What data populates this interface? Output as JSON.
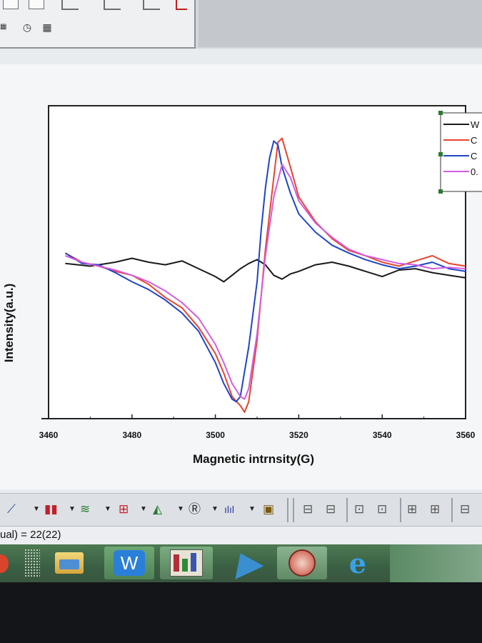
{
  "toolbar_top": {
    "icons": [
      "clock-icon",
      "grid-icon"
    ]
  },
  "chart_data": {
    "type": "line",
    "xlabel": "Magnetic intrnsity(G)",
    "ylabel": "Intensity(a.u.)",
    "xlim": [
      3460,
      3560
    ],
    "x_ticks": [
      "3460",
      "3480",
      "3500",
      "3520",
      "3540",
      "3560"
    ],
    "ylim": [
      -1.15,
      1.25
    ],
    "legend_position": "right, partially cut off",
    "legend_labels": [
      "W",
      "C",
      "C",
      "0."
    ],
    "series": [
      {
        "name": "W",
        "color": "#1a1a1a",
        "x": [
          3464,
          3470,
          3476,
          3480,
          3484,
          3488,
          3492,
          3496,
          3500,
          3502,
          3504,
          3506,
          3508,
          3510,
          3512,
          3514,
          3516,
          3518,
          3520,
          3524,
          3528,
          3532,
          3536,
          3540,
          3544,
          3548,
          3552,
          3556,
          3560
        ],
        "y": [
          0.04,
          0.02,
          0.05,
          0.08,
          0.05,
          0.03,
          0.06,
          0.0,
          -0.06,
          -0.1,
          -0.05,
          0.0,
          0.04,
          0.07,
          0.03,
          -0.05,
          -0.08,
          -0.04,
          -0.02,
          0.03,
          0.05,
          0.02,
          -0.02,
          -0.06,
          -0.01,
          0.0,
          -0.03,
          -0.05,
          -0.07
        ]
      },
      {
        "name": "C",
        "color": "#e8442e",
        "x": [
          3464,
          3468,
          3472,
          3476,
          3480,
          3484,
          3488,
          3492,
          3496,
          3500,
          3502,
          3504,
          3506,
          3507,
          3508,
          3510,
          3512,
          3514,
          3515,
          3516,
          3518,
          3520,
          3524,
          3528,
          3532,
          3536,
          3540,
          3544,
          3548,
          3552,
          3556,
          3560
        ],
        "y": [
          0.12,
          0.05,
          0.02,
          -0.02,
          -0.05,
          -0.12,
          -0.22,
          -0.3,
          -0.45,
          -0.65,
          -0.8,
          -0.98,
          -1.05,
          -1.1,
          -1.02,
          -0.55,
          0.15,
          0.7,
          0.97,
          1.0,
          0.78,
          0.55,
          0.36,
          0.23,
          0.14,
          0.1,
          0.05,
          0.02,
          0.06,
          0.1,
          0.04,
          0.02
        ]
      },
      {
        "name": "C",
        "color": "#1f45c8",
        "x": [
          3464,
          3468,
          3472,
          3476,
          3480,
          3484,
          3488,
          3492,
          3496,
          3500,
          3502,
          3504,
          3505,
          3506,
          3508,
          3510,
          3511,
          3512,
          3513,
          3514,
          3515,
          3516,
          3518,
          3520,
          3524,
          3528,
          3532,
          3536,
          3540,
          3544,
          3548,
          3552,
          3556,
          3560
        ],
        "y": [
          0.12,
          0.04,
          0.03,
          -0.03,
          -0.1,
          -0.16,
          -0.24,
          -0.34,
          -0.48,
          -0.72,
          -0.88,
          -1.0,
          -1.02,
          -0.98,
          -0.6,
          -0.1,
          0.3,
          0.62,
          0.85,
          0.98,
          0.95,
          0.78,
          0.58,
          0.42,
          0.28,
          0.18,
          0.12,
          0.07,
          0.03,
          0.0,
          0.02,
          0.05,
          0.0,
          -0.02
        ]
      },
      {
        "name": "0.",
        "color": "#d35ce0",
        "x": [
          3464,
          3468,
          3472,
          3476,
          3480,
          3484,
          3488,
          3492,
          3496,
          3500,
          3502,
          3504,
          3506,
          3507,
          3508,
          3510,
          3512,
          3514,
          3516,
          3518,
          3520,
          3524,
          3528,
          3532,
          3536,
          3540,
          3544,
          3548,
          3552,
          3556,
          3560
        ],
        "y": [
          0.1,
          0.05,
          0.02,
          -0.01,
          -0.05,
          -0.1,
          -0.17,
          -0.26,
          -0.38,
          -0.58,
          -0.72,
          -0.88,
          -0.98,
          -1.0,
          -0.92,
          -0.5,
          0.1,
          0.55,
          0.8,
          0.7,
          0.52,
          0.35,
          0.24,
          0.15,
          0.1,
          0.07,
          0.04,
          0.03,
          0.0,
          0.01,
          0.0
        ]
      }
    ]
  },
  "toolbar_bottom": {
    "icons": [
      "line-chart-icon",
      "bar-chart-icon",
      "multi-line-icon",
      "box-plot-icon",
      "area-chart-icon",
      "annotation-icon",
      "peak-icon",
      "layer-icon",
      "align-icon"
    ]
  },
  "status_bar": {
    "text": "ual) = 22(22)"
  },
  "taskbar": {
    "apps": [
      "file-explorer-icon",
      "wps-writer-icon",
      "origin-graph-icon",
      "bird-app-icon",
      "chart-app-icon",
      "internet-explorer-icon"
    ],
    "wps_label": "W"
  }
}
